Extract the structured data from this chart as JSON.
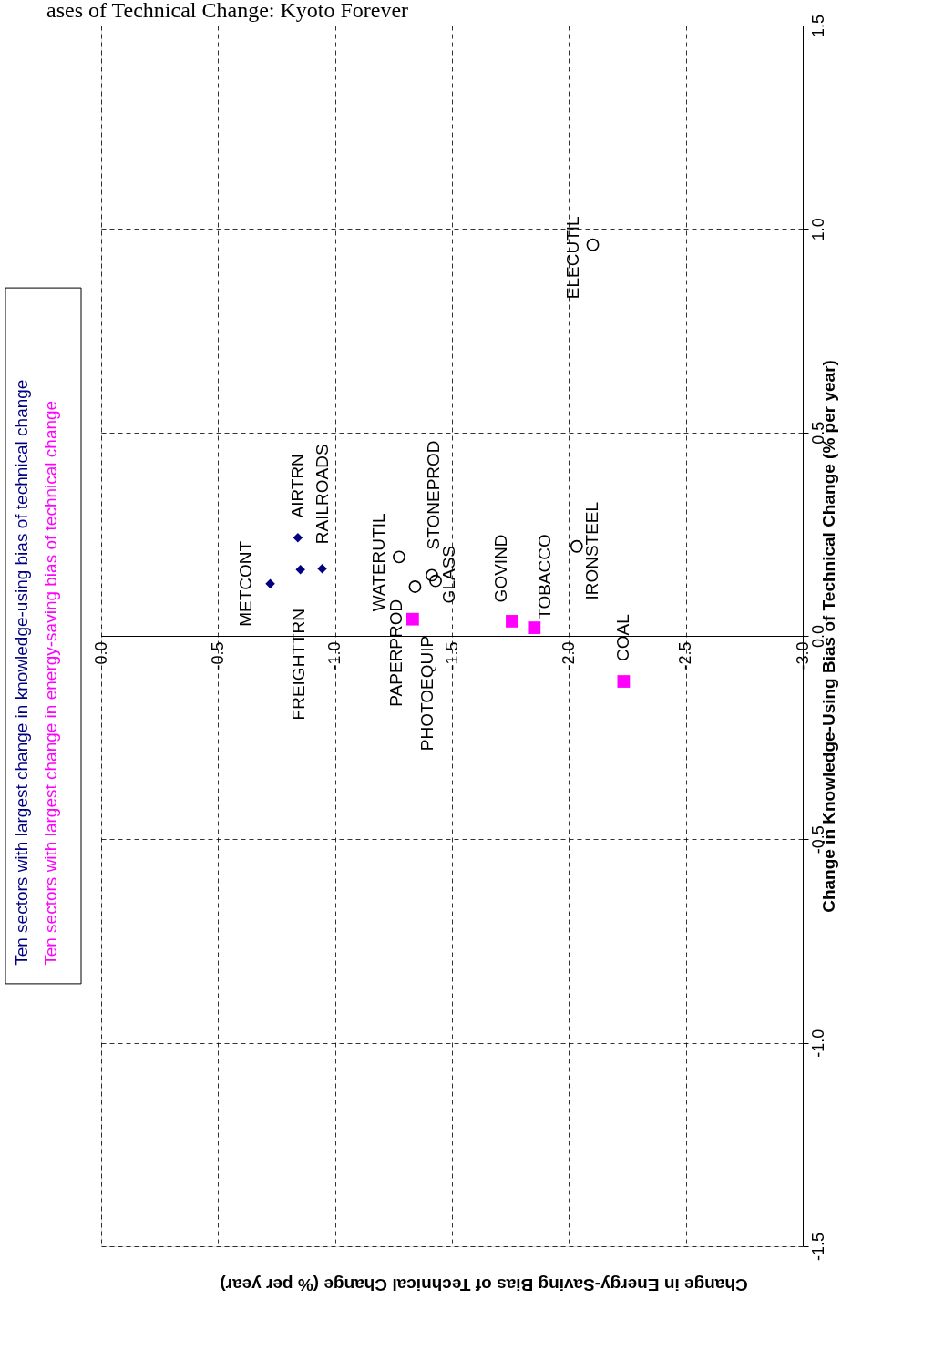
{
  "chart_data": {
    "type": "scatter",
    "title": "ases of Technical Change: Kyoto Forever",
    "xlabel": "Change in Energy-Saving Bias of Technical Change (% per year)",
    "ylabel": "Change in Knowledge-Using Bias of Technical Change (% per year)",
    "xlim": [
      0,
      -3
    ],
    "ylim": [
      -1.5,
      1.5
    ],
    "xticks": [
      {
        "value": 0,
        "label": "0.0"
      },
      {
        "value": -0.5,
        "label": "-0.5"
      },
      {
        "value": -1,
        "label": "-1.0"
      },
      {
        "value": -1.5,
        "label": "-1.5"
      },
      {
        "value": -2,
        "label": "-2.0"
      },
      {
        "value": -2.5,
        "label": "-2.5"
      },
      {
        "value": -3,
        "label": "-3.0"
      }
    ],
    "yticks": [
      {
        "value": -1.5,
        "label": "-1.5"
      },
      {
        "value": -1,
        "label": "-1.0"
      },
      {
        "value": -0.5,
        "label": "-0.5"
      },
      {
        "value": 0,
        "label": "0.0"
      },
      {
        "value": 0.5,
        "label": "0.5"
      },
      {
        "value": 1,
        "label": "1.0"
      },
      {
        "value": 1.5,
        "label": "1.5"
      }
    ],
    "grid": true,
    "legend": "left",
    "series": [
      {
        "name": "Ten sectors with largest change in knowledge-using bias of technical change",
        "color": "#000080",
        "marker": "diamond",
        "x": [
          -0.723,
          -0.852,
          -0.841,
          -0.945
        ],
        "values": [
          0.128,
          0.163,
          0.241,
          0.165
        ]
      },
      {
        "name": "Ten sectors with largest change in energy-saving bias of technical change",
        "color": "#ff00ff",
        "marker": "square",
        "x": [
          -1.332,
          -1.757,
          -1.852,
          -2.234
        ],
        "values": [
          0.041,
          0.036,
          0.02,
          -0.112
        ]
      },
      {
        "color": "#000000",
        "marker": "circle",
        "x": [
          -1.274,
          -1.342,
          -1.414,
          -1.43,
          -2.033,
          -2.102
        ],
        "values": [
          0.194,
          0.121,
          0.149,
          0.135,
          0.22,
          0.961
        ]
      }
    ],
    "annotations": [
      {
        "text": "METCONT",
        "x": -0.723,
        "y": 0.128
      },
      {
        "text": "FREIGHTTRN",
        "x": -0.852,
        "y": 0.163
      },
      {
        "text": "AIRTRN",
        "x": -0.841,
        "y": 0.241
      },
      {
        "text": "RAILROADS",
        "x": -0.945,
        "y": 0.165
      },
      {
        "text": "PAPERPROD",
        "x": -1.332,
        "y": 0.041
      },
      {
        "text": "GOVIND",
        "x": -1.757,
        "y": 0.036
      },
      {
        "text": "TOBACCO",
        "x": -1.852,
        "y": 0.02
      },
      {
        "text": "COAL",
        "x": -2.234,
        "y": -0.112
      },
      {
        "text": "WATERUTIL",
        "x": -1.274,
        "y": 0.194
      },
      {
        "text": "PHOTOEQUIP",
        "x": -1.342,
        "y": 0.121
      },
      {
        "text": "STONEPROD",
        "x": -1.414,
        "y": 0.149
      },
      {
        "text": "GLASS",
        "x": -1.43,
        "y": 0.135
      },
      {
        "text": "IRONSTEEL",
        "x": -2.033,
        "y": 0.22
      },
      {
        "text": "ELECUTIL",
        "x": -2.102,
        "y": 0.961
      }
    ]
  }
}
